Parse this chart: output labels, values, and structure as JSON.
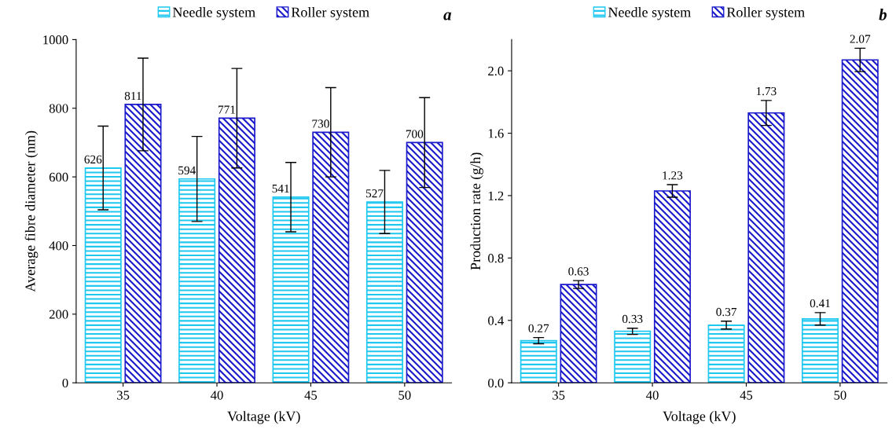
{
  "chart_data": [
    {
      "type": "bar",
      "title": "a",
      "xlabel": "Voltage (kV)",
      "ylabel": "Average fibre diameter (nm)",
      "categories": [
        "35",
        "40",
        "45",
        "50"
      ],
      "series": [
        {
          "name": "Needle system",
          "color": "#1ec8f0",
          "values": [
            626,
            594,
            541,
            527
          ],
          "errors": [
            122,
            124,
            101,
            92
          ]
        },
        {
          "name": "Roller system",
          "color": "#1a1acc",
          "values": [
            811,
            771,
            730,
            700
          ],
          "errors": [
            135,
            145,
            130,
            131
          ]
        }
      ],
      "ylim": [
        0,
        1000
      ],
      "yticks": [
        0,
        200,
        400,
        600,
        800,
        1000
      ],
      "data_labels": true,
      "legend": "top",
      "grid": false
    },
    {
      "type": "bar",
      "title": "b",
      "xlabel": "Voltage (kV)",
      "ylabel": "Production rate (g/h)",
      "categories": [
        "35",
        "40",
        "45",
        "50"
      ],
      "series": [
        {
          "name": "Needle system",
          "color": "#1ec8f0",
          "values": [
            0.27,
            0.33,
            0.37,
            0.41
          ],
          "errors": [
            0.02,
            0.02,
            0.025,
            0.04
          ]
        },
        {
          "name": "Roller system",
          "color": "#1a1acc",
          "values": [
            0.63,
            1.23,
            1.73,
            2.07
          ],
          "errors": [
            0.025,
            0.04,
            0.08,
            0.075
          ]
        }
      ],
      "ylim": [
        0,
        2.2
      ],
      "yticks": [
        {
          "value": 0,
          "label": "0.0"
        },
        {
          "value": 0.4,
          "label": "0.4"
        },
        {
          "value": 0.8,
          "label": "0.8"
        },
        {
          "value": 1.2,
          "label": "1.2"
        },
        {
          "value": 1.6,
          "label": "1.6"
        },
        {
          "value": 2.0,
          "label": "2.0"
        }
      ],
      "data_labels": true,
      "legend": "top",
      "grid": false
    }
  ]
}
